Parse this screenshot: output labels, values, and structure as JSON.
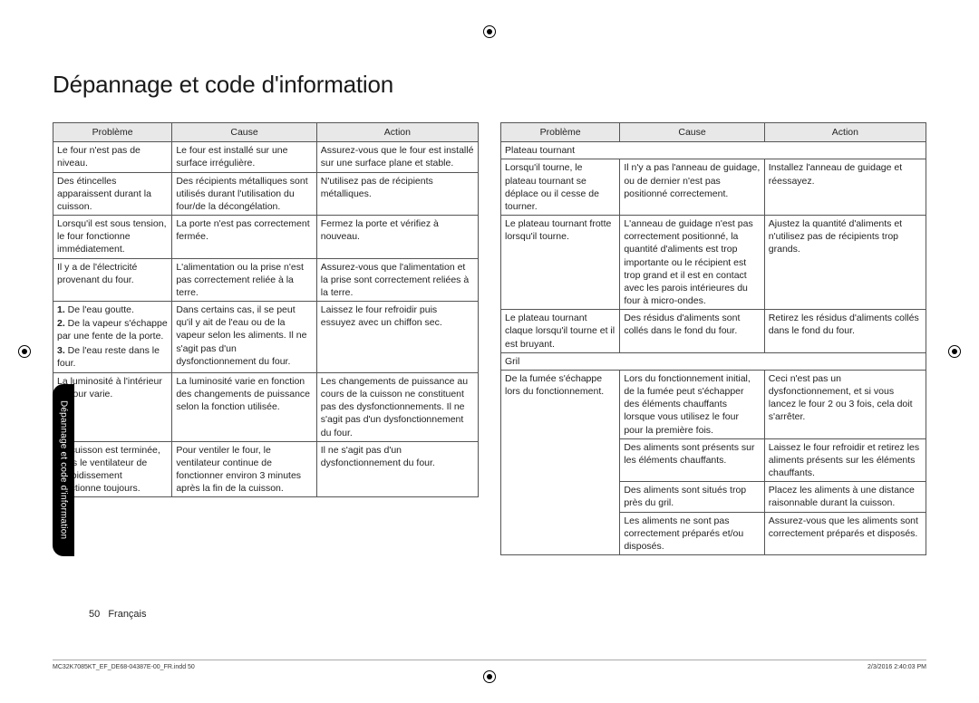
{
  "title": "Dépannage et code d'information",
  "sideTab": "Dépannage et code d'information",
  "footer": {
    "pageNum": "50",
    "lang": "Français"
  },
  "printMeta": {
    "file": "MC32K7085KT_EF_DE68-04387E-00_FR.indd   50",
    "date": "2/3/2016   2:40:03 PM"
  },
  "headers": {
    "col1": "Problème",
    "col2": "Cause",
    "col3": "Action"
  },
  "left": {
    "rows": [
      {
        "p": "Le four n'est pas de niveau.",
        "c": "Le four est installé sur une surface irrégulière.",
        "a": "Assurez-vous que le four est installé sur une surface plane et stable."
      },
      {
        "p": "Des étincelles apparaissent durant la cuisson.",
        "c": "Des récipients métalliques sont utilisés durant l'utilisation du four/de la décongélation.",
        "a": "N'utilisez pas de récipients métalliques."
      },
      {
        "p": "Lorsqu'il est sous tension, le four fonctionne immédiatement.",
        "c": "La porte n'est pas correctement fermée.",
        "a": "Fermez la porte et vérifiez à nouveau."
      },
      {
        "p": "Il y a de l'électricité provenant du four.",
        "c": "L'alimentation ou la prise n'est pas correctement reliée à la terre.",
        "a": "Assurez-vous que l'alimentation et la prise sont correctement reliées à la terre."
      },
      {
        "p_list": [
          "De l'eau goutte.",
          "De la vapeur s'échappe par une fente de la porte.",
          "De l'eau reste dans le four."
        ],
        "c": "Dans certains cas, il se peut qu'il y ait de l'eau ou de la vapeur selon les aliments. Il ne s'agit pas d'un dysfonctionnement du four.",
        "a": "Laissez le four refroidir puis essuyez avec un chiffon sec."
      },
      {
        "p": "La luminosité à l'intérieur du four varie.",
        "c": "La luminosité varie en fonction des changements de puissance selon la fonction utilisée.",
        "a": "Les changements de puissance au cours de la cuisson ne constituent pas des dysfonctionnements. Il ne s'agit pas d'un dysfonctionnement du four."
      },
      {
        "p": "La cuisson est terminée, mais le ventilateur de refroidissement fonctionne toujours.",
        "c": "Pour ventiler le four, le ventilateur continue de fonctionner environ 3 minutes après la fin de la cuisson.",
        "a": "Il ne s'agit pas d'un dysfonctionnement du four."
      }
    ]
  },
  "right": {
    "section1": "Plateau tournant",
    "rows1": [
      {
        "p": "Lorsqu'il tourne, le plateau tournant se déplace ou il cesse de tourner.",
        "c": "Il n'y a pas l'anneau de guidage, ou de dernier n'est pas positionné correctement.",
        "a": "Installez l'anneau de guidage et réessayez."
      },
      {
        "p": "Le plateau tournant frotte lorsqu'il tourne.",
        "c": "L'anneau de guidage n'est pas correctement positionné, la quantité d'aliments est trop importante ou le récipient est trop grand et il est en contact avec les parois intérieures du four à micro-ondes.",
        "a": "Ajustez la quantité d'aliments et n'utilisez pas de récipients trop grands."
      },
      {
        "p": "Le plateau tournant claque lorsqu'il tourne et il est bruyant.",
        "c": "Des résidus d'aliments sont collés dans le fond du four.",
        "a": "Retirez les résidus d'aliments collés dans le fond du four."
      }
    ],
    "section2": "Gril",
    "rows2": [
      {
        "p": "De la fumée s'échappe lors du fonctionnement.",
        "pRowspan": 4,
        "c": "Lors du fonctionnement initial, de la fumée peut s'échapper des éléments chauffants lorsque vous utilisez le four pour la première fois.",
        "a": "Ceci n'est pas un dysfonctionnement, et si vous lancez le four 2 ou 3 fois, cela doit s'arrêter."
      },
      {
        "c": "Des aliments sont présents sur les éléments chauffants.",
        "a": "Laissez le four refroidir et retirez les aliments présents sur les éléments chauffants."
      },
      {
        "c": "Des aliments sont situés trop près du gril.",
        "a": "Placez les aliments à une distance raisonnable durant la cuisson."
      },
      {
        "c": "Les aliments ne sont pas correctement préparés et/ou disposés.",
        "a": "Assurez-vous que les aliments sont correctement préparés et disposés."
      }
    ]
  }
}
